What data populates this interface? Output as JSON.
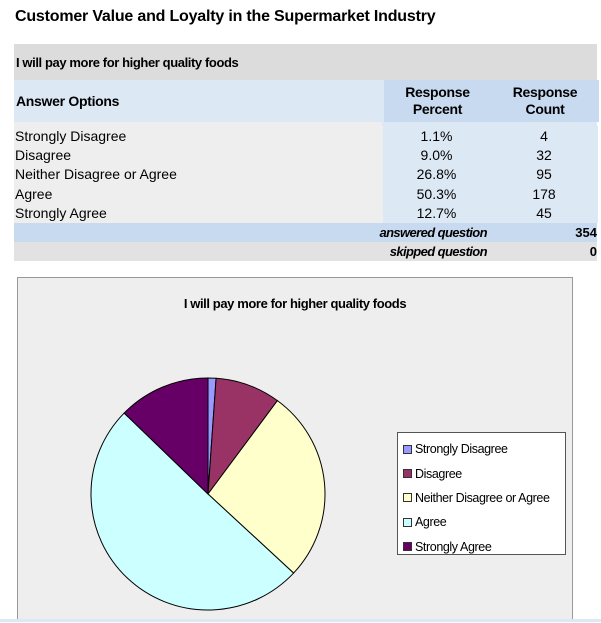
{
  "page_title": "Customer Value and Loyalty in the Supermarket Industry",
  "table": {
    "question": "I will pay more for higher quality foods",
    "headers": {
      "options": "Answer Options",
      "percent_line1": "Response",
      "percent_line2": "Percent",
      "count_line1": "Response",
      "count_line2": "Count"
    },
    "rows": [
      {
        "option": "Strongly Disagree",
        "percent": "1.1%",
        "count": "4"
      },
      {
        "option": "Disagree",
        "percent": "9.0%",
        "count": "32"
      },
      {
        "option": "Neither Disagree or Agree",
        "percent": "26.8%",
        "count": "95"
      },
      {
        "option": "Agree",
        "percent": "50.3%",
        "count": "178"
      },
      {
        "option": "Strongly Agree",
        "percent": "12.7%",
        "count": "45"
      }
    ],
    "answered_label": "answered question",
    "answered_value": "354",
    "skipped_label": "skipped question",
    "skipped_value": "0"
  },
  "chart_data": {
    "type": "pie",
    "title": "I will pay more for higher quality foods",
    "categories": [
      "Strongly Disagree",
      "Disagree",
      "Neither Disagree or Agree",
      "Agree",
      "Strongly Agree"
    ],
    "values": [
      1.1,
      9.0,
      26.8,
      50.3,
      12.7
    ],
    "colors": [
      "#9999ff",
      "#993366",
      "#ffffcc",
      "#ccffff",
      "#660066"
    ],
    "legend_position": "right"
  }
}
